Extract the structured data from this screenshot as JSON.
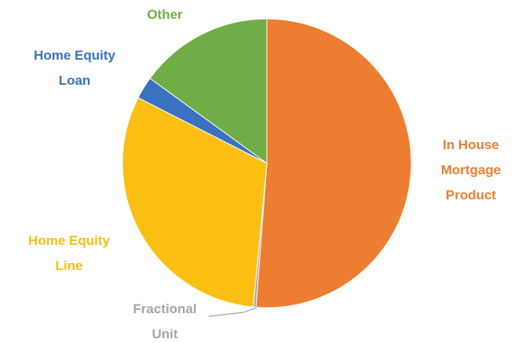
{
  "chart_data": {
    "type": "pie",
    "categories": [
      [
        "In House",
        "Mortgage",
        "Product"
      ],
      [
        "Fractional",
        "Unit"
      ],
      [
        "Home Equity",
        "Line"
      ],
      [
        "Home Equity",
        "Loan"
      ],
      [
        "Other"
      ]
    ],
    "values": [
      51.2,
      0.3,
      31,
      2.5,
      15
    ],
    "colors": [
      "#ED7D31",
      "#A5A5A5",
      "#FBBF14",
      "#3A72C0",
      "#70AD47"
    ]
  }
}
